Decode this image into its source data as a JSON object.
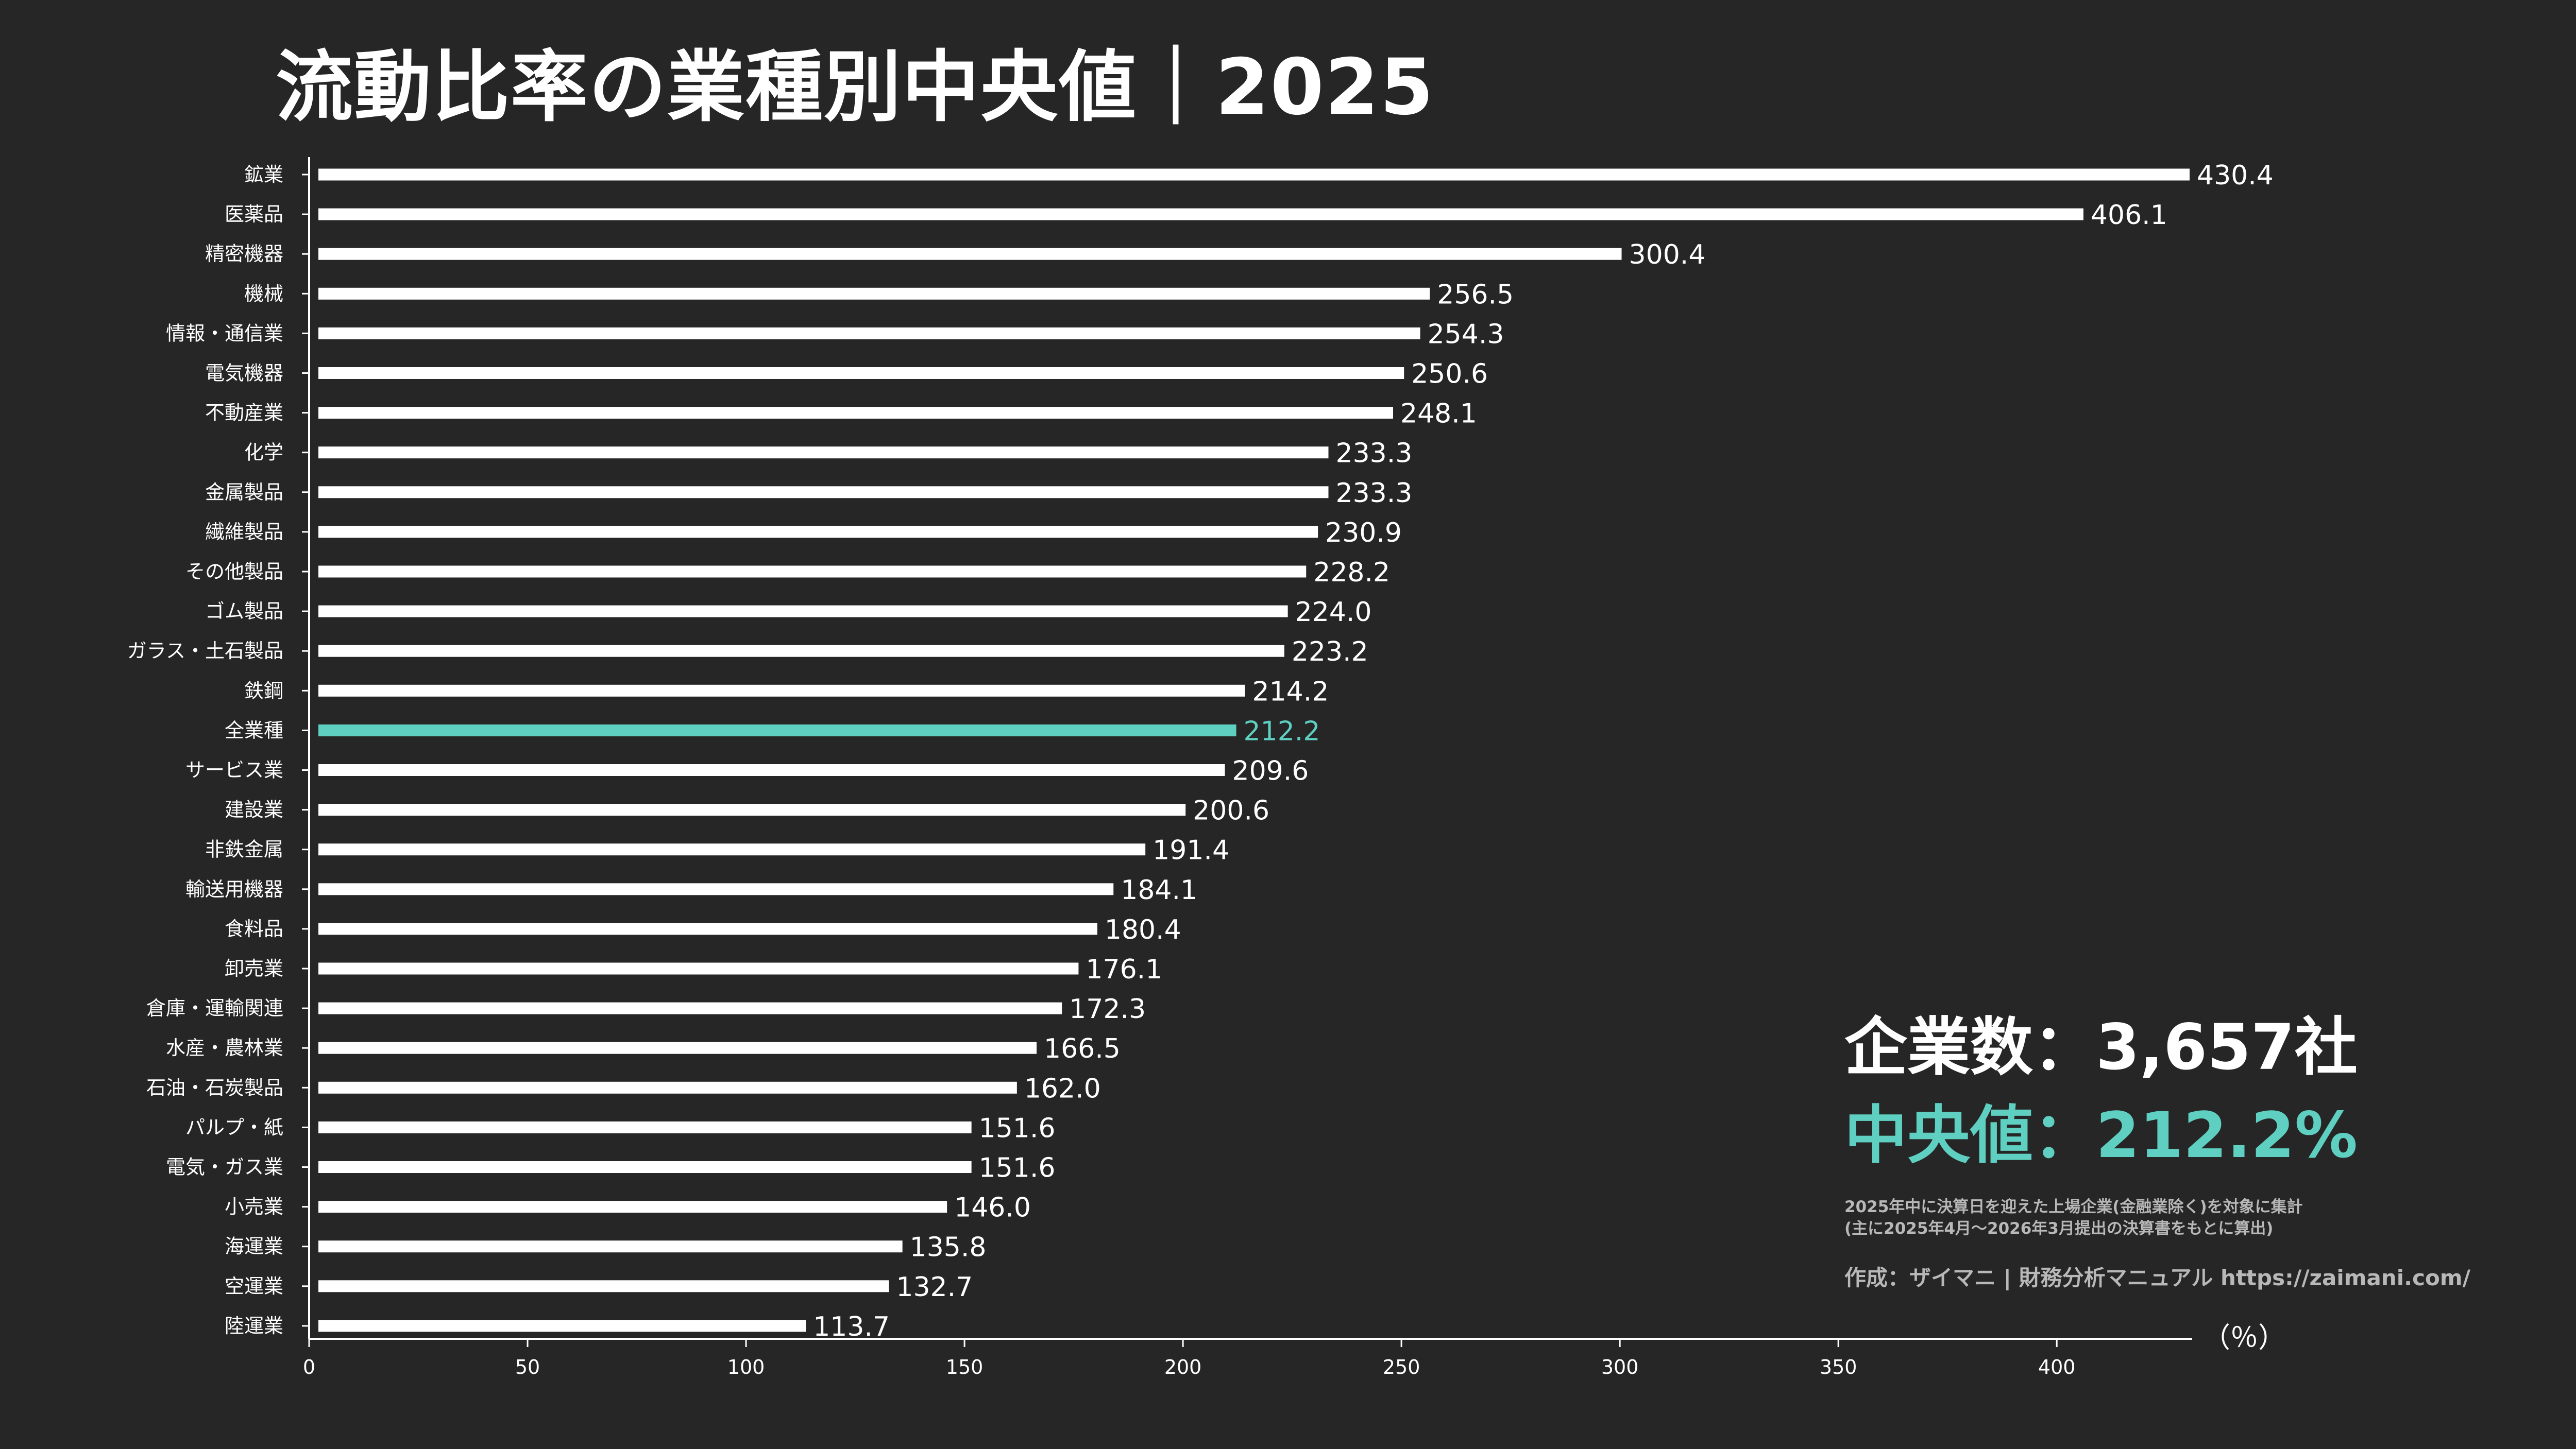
{
  "title": "流動比率の業種別中央値｜2025",
  "summary": {
    "company_count": "企業数：3,657社",
    "median": "中央値：212.2%",
    "note_1": "2025年中に決算日を迎えた上場企業(金融業除く)を対象に集計",
    "note_2": "(主に2025年4月～2026年3月提出の決算書をもとに算出)",
    "credit": "作成：ザイマニ | 財務分析マニュアル https://zaimani.com/"
  },
  "colors": {
    "background": "#262626",
    "bar": "#ffffff",
    "highlight": "#5ecfc0",
    "axis": "#ffffff",
    "note": "#b8b8b8"
  },
  "chart_data": {
    "type": "bar",
    "orientation": "horizontal",
    "categories": [
      "鉱業",
      "医薬品",
      "精密機器",
      "機械",
      "情報・通信業",
      "電気機器",
      "不動産業",
      "化学",
      "金属製品",
      "繊維製品",
      "その他製品",
      "ゴム製品",
      "ガラス・土石製品",
      "鉄鋼",
      "全業種",
      "サービス業",
      "建設業",
      "非鉄金属",
      "輸送用機器",
      "食料品",
      "卸売業",
      "倉庫・運輸関連",
      "水産・農林業",
      "石油・石炭製品",
      "パルプ・紙",
      "電気・ガス業",
      "小売業",
      "海運業",
      "空運業",
      "陸運業"
    ],
    "values": [
      430.4,
      406.1,
      300.4,
      256.5,
      254.3,
      250.6,
      248.1,
      233.3,
      233.3,
      230.9,
      228.2,
      224.0,
      223.2,
      214.2,
      212.2,
      209.6,
      200.6,
      191.4,
      184.1,
      180.4,
      176.1,
      172.3,
      166.5,
      162.0,
      151.6,
      151.6,
      146.0,
      135.8,
      132.7,
      113.7
    ],
    "value_labels": [
      "430.4",
      "406.1",
      "300.4",
      "256.5",
      "254.3",
      "250.6",
      "248.1",
      "233.3",
      "233.3",
      "230.9",
      "228.2",
      "224.0",
      "223.2",
      "214.2",
      "212.2",
      "209.6",
      "200.6",
      "191.4",
      "184.1",
      "180.4",
      "176.1",
      "172.3",
      "166.5",
      "162.0",
      "151.6",
      "151.6",
      "146.0",
      "135.8",
      "132.7",
      "113.7"
    ],
    "highlight_category": "全業種",
    "xlim": [
      0,
      430
    ],
    "xticks": [
      0,
      50,
      100,
      150,
      200,
      250,
      300,
      350,
      400
    ],
    "xtick_labels": [
      "0",
      "50",
      "100",
      "150",
      "200",
      "250",
      "300",
      "350",
      "400"
    ],
    "xlabel": "（％）",
    "grid": false
  }
}
